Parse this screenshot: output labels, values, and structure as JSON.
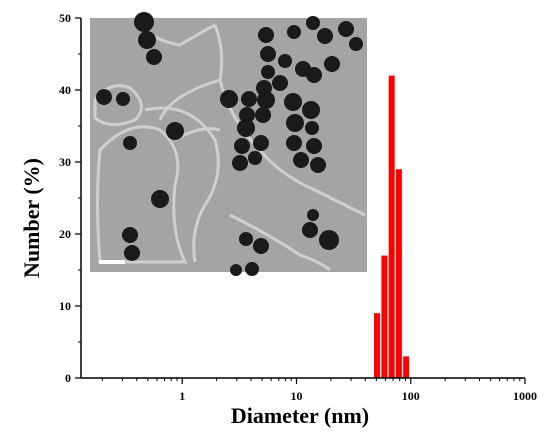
{
  "chart_data": {
    "type": "bar",
    "title": "",
    "xlabel": "Diameter (nm)",
    "ylabel": "Number (%)",
    "x_scale": "log",
    "xlim": [
      0.13,
      1000
    ],
    "ylim": [
      0,
      50
    ],
    "x_ticks": [
      {
        "value": 1,
        "label": "1"
      },
      {
        "value": 10,
        "label": "10"
      },
      {
        "value": 100,
        "label": "100"
      },
      {
        "value": 1000,
        "label": "1000"
      }
    ],
    "y_ticks": [
      {
        "value": 0,
        "label": "0"
      },
      {
        "value": 10,
        "label": "10"
      },
      {
        "value": 20,
        "label": "20"
      },
      {
        "value": 30,
        "label": "30"
      },
      {
        "value": 40,
        "label": "40"
      },
      {
        "value": 50,
        "label": "50"
      }
    ],
    "grid": false,
    "bar_color": "#ff0000",
    "series": [
      {
        "x": [
          50.7,
          58.8,
          68.1,
          78.8,
          91.3
        ],
        "values": [
          9,
          17,
          42,
          29,
          3
        ]
      }
    ],
    "inset": {
      "type": "tem-micrograph",
      "position": "top-left",
      "background_color": "#a4a4a4",
      "particle_color": "#1a1a1a",
      "has_scale_bar": true
    }
  }
}
